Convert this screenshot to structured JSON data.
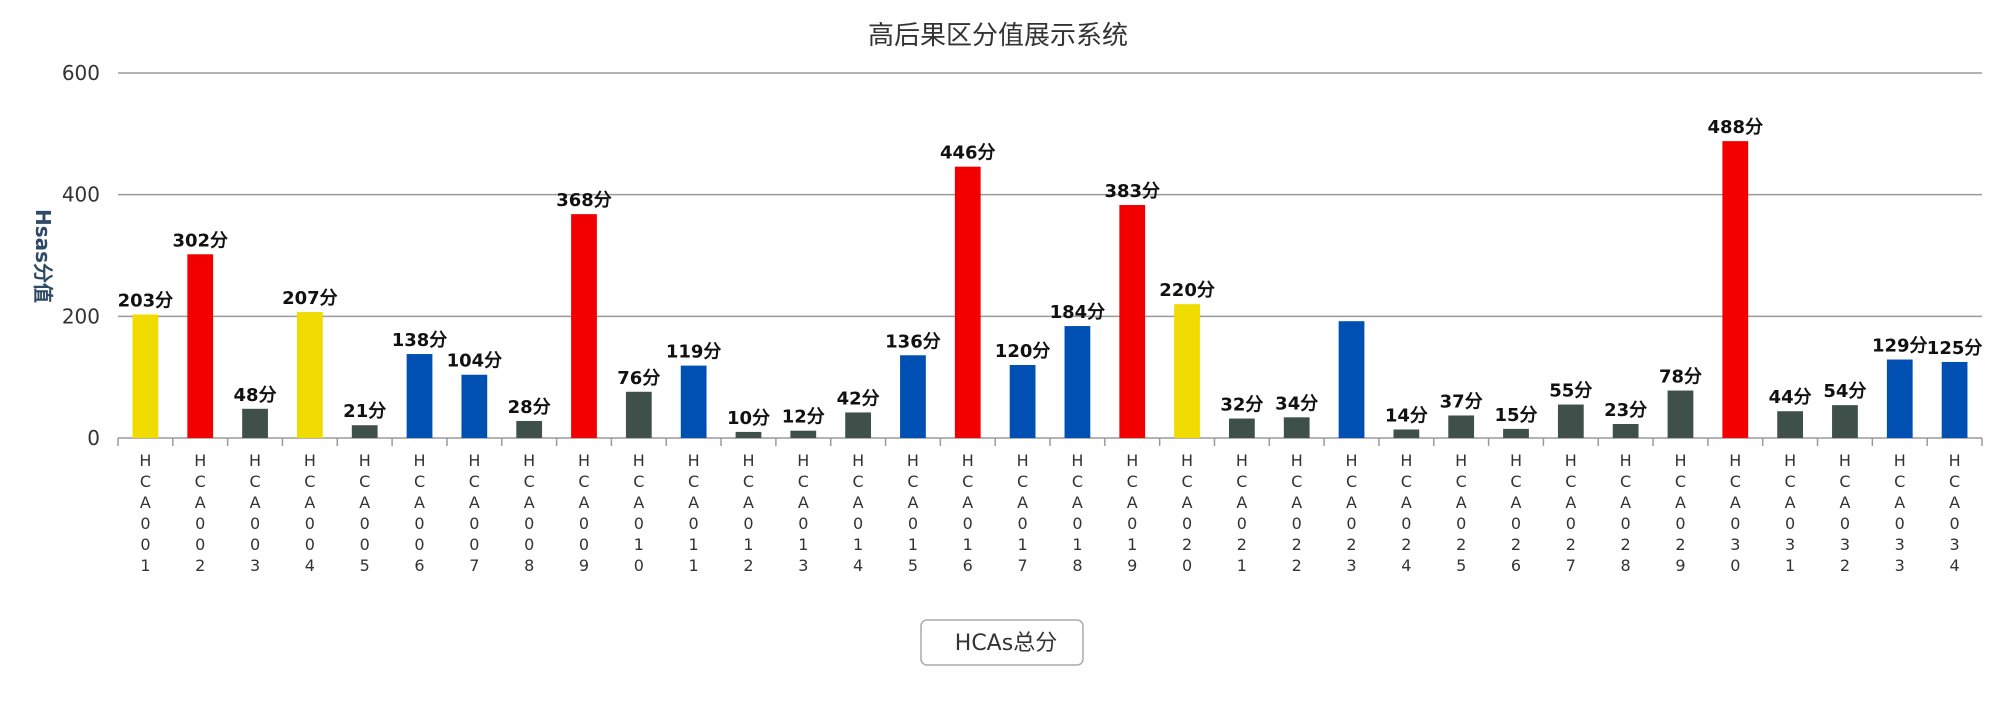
{
  "chart_data": {
    "type": "bar",
    "title": "高后果区分值展示系统",
    "ylabel": "Hsas分值",
    "xlabel": "",
    "ylim": [
      0,
      600
    ],
    "yticks": [
      0,
      200,
      400,
      600
    ],
    "value_suffix": "分",
    "legend": {
      "label": "HCAs总分",
      "placement": "bottom-center"
    },
    "grid": true,
    "colors": {
      "yellow": "#f0dc00",
      "red": "#f20000",
      "blue": "#0050b4",
      "dark": "#3e5049"
    },
    "categories": [
      "HCA001",
      "HCA002",
      "HCA003",
      "HCA004",
      "HCA005",
      "HCA006",
      "HCA007",
      "HCA008",
      "HCA009",
      "HCA010",
      "HCA011",
      "HCA012",
      "HCA013",
      "HCA014",
      "HCA015",
      "HCA016",
      "HCA017",
      "HCA018",
      "HCA019",
      "HCA020",
      "HCA021",
      "HCA022",
      "HCA023",
      "HCA024",
      "HCA025",
      "HCA026",
      "HCA027",
      "HCA028",
      "HCA029",
      "HCA030",
      "HCA031",
      "HCA032",
      "HCA033",
      "HCA034"
    ],
    "values": [
      203,
      302,
      48,
      207,
      21,
      138,
      104,
      28,
      368,
      76,
      119,
      10,
      12,
      42,
      136,
      446,
      120,
      184,
      383,
      220,
      32,
      34,
      192,
      14,
      37,
      15,
      55,
      23,
      78,
      488,
      44,
      54,
      129,
      125
    ],
    "data_labels": [
      "203分",
      "302分",
      "48分",
      "207分",
      "21分",
      "138分",
      "104分",
      "28分",
      "368分",
      "76分",
      "119分",
      "10分",
      "12分",
      "42分",
      "136分",
      "446分",
      "120分",
      "184分",
      "383分",
      "220分",
      "32分",
      "34分",
      "",
      "14分",
      "37分",
      "15分",
      "55分",
      "23分",
      "78分",
      "488分",
      "44分",
      "54分",
      "129分",
      "125分"
    ],
    "bar_colors": [
      "yellow",
      "red",
      "dark",
      "yellow",
      "dark",
      "blue",
      "blue",
      "dark",
      "red",
      "dark",
      "blue",
      "dark",
      "dark",
      "dark",
      "blue",
      "red",
      "blue",
      "blue",
      "red",
      "yellow",
      "dark",
      "dark",
      "blue",
      "dark",
      "dark",
      "dark",
      "dark",
      "dark",
      "dark",
      "red",
      "dark",
      "dark",
      "blue",
      "blue"
    ]
  }
}
